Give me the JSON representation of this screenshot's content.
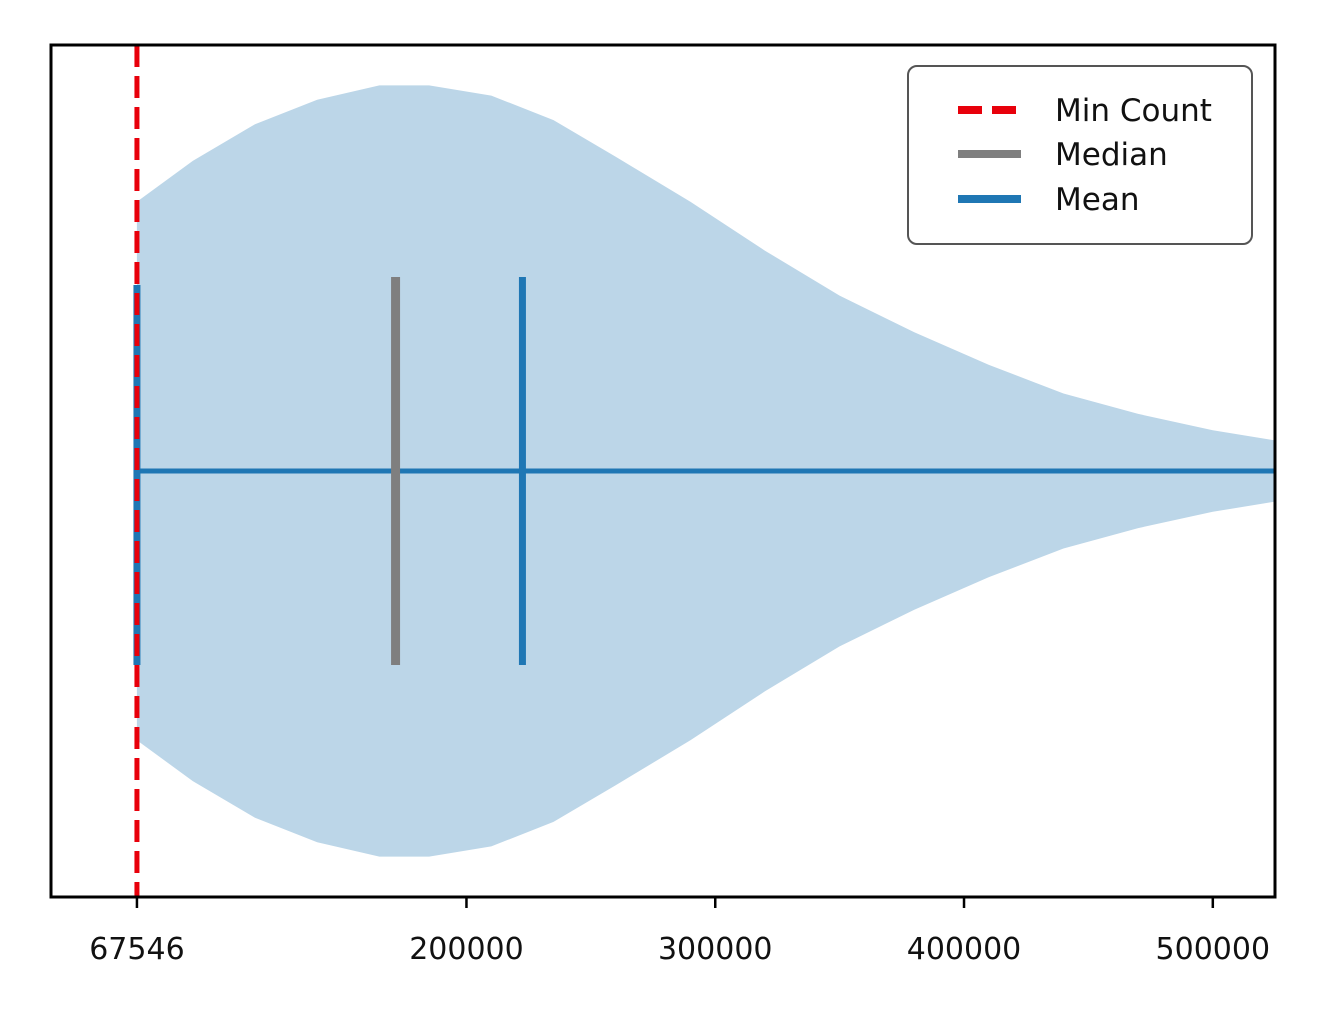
{
  "chart_data": {
    "type": "violin",
    "title": "",
    "xlabel": "",
    "ylabel": "",
    "xlim": [
      33000,
      525000
    ],
    "xticks": [
      {
        "value": 67546,
        "label": "67546"
      },
      {
        "value": 200000,
        "label": "200000"
      },
      {
        "value": 300000,
        "label": "300000"
      },
      {
        "value": 400000,
        "label": "400000"
      },
      {
        "value": 500000,
        "label": "500000"
      }
    ],
    "violin": {
      "color": "#bcd6e8",
      "min": 67546,
      "max": 525000,
      "density_profile": [
        {
          "x": 67546,
          "half_width": 0.66
        },
        {
          "x": 90000,
          "half_width": 0.76
        },
        {
          "x": 115000,
          "half_width": 0.85
        },
        {
          "x": 140000,
          "half_width": 0.91
        },
        {
          "x": 165000,
          "half_width": 0.945
        },
        {
          "x": 185000,
          "half_width": 0.945
        },
        {
          "x": 210000,
          "half_width": 0.92
        },
        {
          "x": 235000,
          "half_width": 0.86
        },
        {
          "x": 260000,
          "half_width": 0.77
        },
        {
          "x": 290000,
          "half_width": 0.66
        },
        {
          "x": 320000,
          "half_width": 0.54
        },
        {
          "x": 350000,
          "half_width": 0.43
        },
        {
          "x": 380000,
          "half_width": 0.34
        },
        {
          "x": 410000,
          "half_width": 0.26
        },
        {
          "x": 440000,
          "half_width": 0.19
        },
        {
          "x": 470000,
          "half_width": 0.14
        },
        {
          "x": 500000,
          "half_width": 0.1
        },
        {
          "x": 525000,
          "half_width": 0.075
        }
      ]
    },
    "series": [
      {
        "name": "Min Count",
        "value": 67546,
        "color": "#e8000b",
        "style": "dashed"
      },
      {
        "name": "Median",
        "value": 171500,
        "color": "#7f7f7f",
        "style": "solid"
      },
      {
        "name": "Mean",
        "value": 222500,
        "color": "#1f77b4",
        "style": "solid"
      }
    ],
    "legend": {
      "placement": "top-right",
      "entries": [
        "Min Count",
        "Median",
        "Mean"
      ]
    },
    "grid": false
  }
}
